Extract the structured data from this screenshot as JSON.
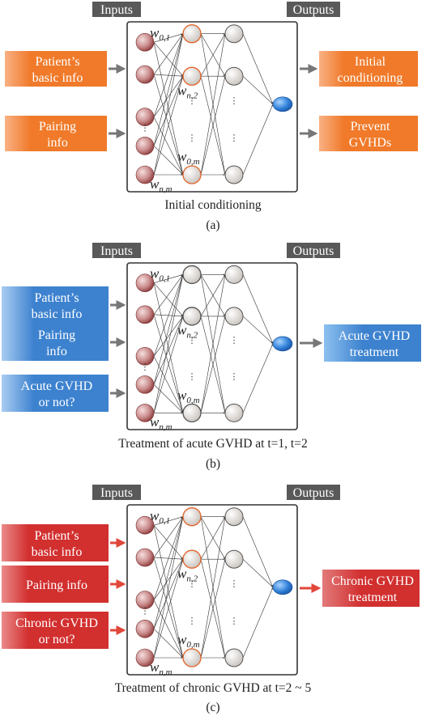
{
  "panels": [
    {
      "id": "a",
      "theme": "orange",
      "inputs_label": "Inputs",
      "outputs_label": "Outputs",
      "inputs": [
        [
          "Patient’s",
          "basic info"
        ],
        [
          "Pairing",
          "info"
        ]
      ],
      "outputs": [
        [
          "Initial",
          "conditioning"
        ],
        [
          "Prevent",
          "GVHDs"
        ]
      ],
      "weights": [
        {
          "base": "w",
          "sub": "0,1"
        },
        {
          "base": "w",
          "sub": "n,2"
        },
        {
          "base": "w",
          "sub": "0,m"
        },
        {
          "base": "w",
          "sub": "n,m"
        }
      ],
      "caption": "Initial conditioning",
      "letter": "(a)"
    },
    {
      "id": "b",
      "theme": "blue",
      "inputs_label": "Inputs",
      "outputs_label": "Outputs",
      "inputs": [
        [
          "Patient’s",
          "basic info"
        ],
        [
          "Pairing",
          "info"
        ],
        [
          "Acute GVHD",
          "or not?"
        ]
      ],
      "outputs": [
        [
          "Acute GVHD",
          "treatment"
        ]
      ],
      "weights": [
        {
          "base": "w",
          "sub": "0,1"
        },
        {
          "base": "w",
          "sub": "n,2"
        },
        {
          "base": "w",
          "sub": "0,m"
        },
        {
          "base": "w",
          "sub": "n,m"
        }
      ],
      "caption": "Treatment of acute GVHD at t=1, t=2",
      "letter": "(b)"
    },
    {
      "id": "c",
      "theme": "red",
      "inputs_label": "Inputs",
      "outputs_label": "Outputs",
      "inputs": [
        [
          "Patient’s",
          "basic info"
        ],
        [
          "Pairing  info"
        ],
        [
          "Chronic GVHD",
          "or not?"
        ]
      ],
      "outputs": [
        [
          "Chronic GVHD",
          "treatment"
        ]
      ],
      "weights": [
        {
          "base": "w",
          "sub": "0,1"
        },
        {
          "base": "w",
          "sub": "n,2"
        },
        {
          "base": "w",
          "sub": "0,m"
        },
        {
          "base": "w",
          "sub": "n,m"
        }
      ],
      "caption": "Treatment of chronic GVHD at t=2 ~ 5",
      "letter": "(c)"
    }
  ],
  "colors": {
    "orange": "#f07a2a",
    "blue": "#3d82cf",
    "red": "#d22f2f",
    "header": "#595959",
    "output_node": "#2f7fd8"
  }
}
